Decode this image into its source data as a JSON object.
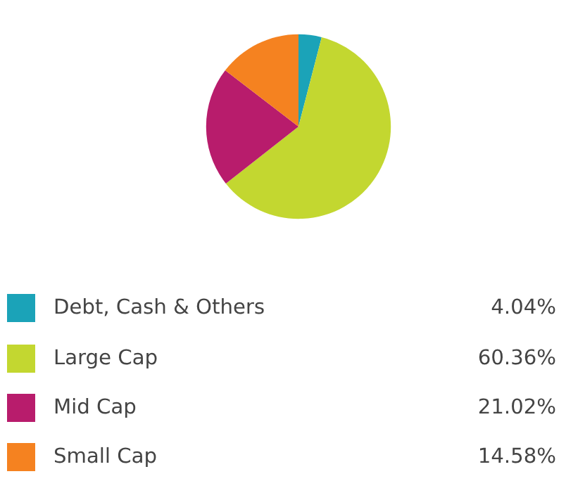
{
  "chart_data": {
    "type": "pie",
    "categories": [
      "Debt, Cash & Others",
      "Large Cap",
      "Mid Cap",
      "Small Cap"
    ],
    "values": [
      4.04,
      60.36,
      21.02,
      14.58
    ],
    "value_labels": [
      "4.04%",
      "60.36%",
      "21.02%",
      "14.58%"
    ],
    "colors": [
      "#1ba3b8",
      "#c3d730",
      "#b81c6c",
      "#f58220"
    ],
    "legend": "bottom"
  }
}
